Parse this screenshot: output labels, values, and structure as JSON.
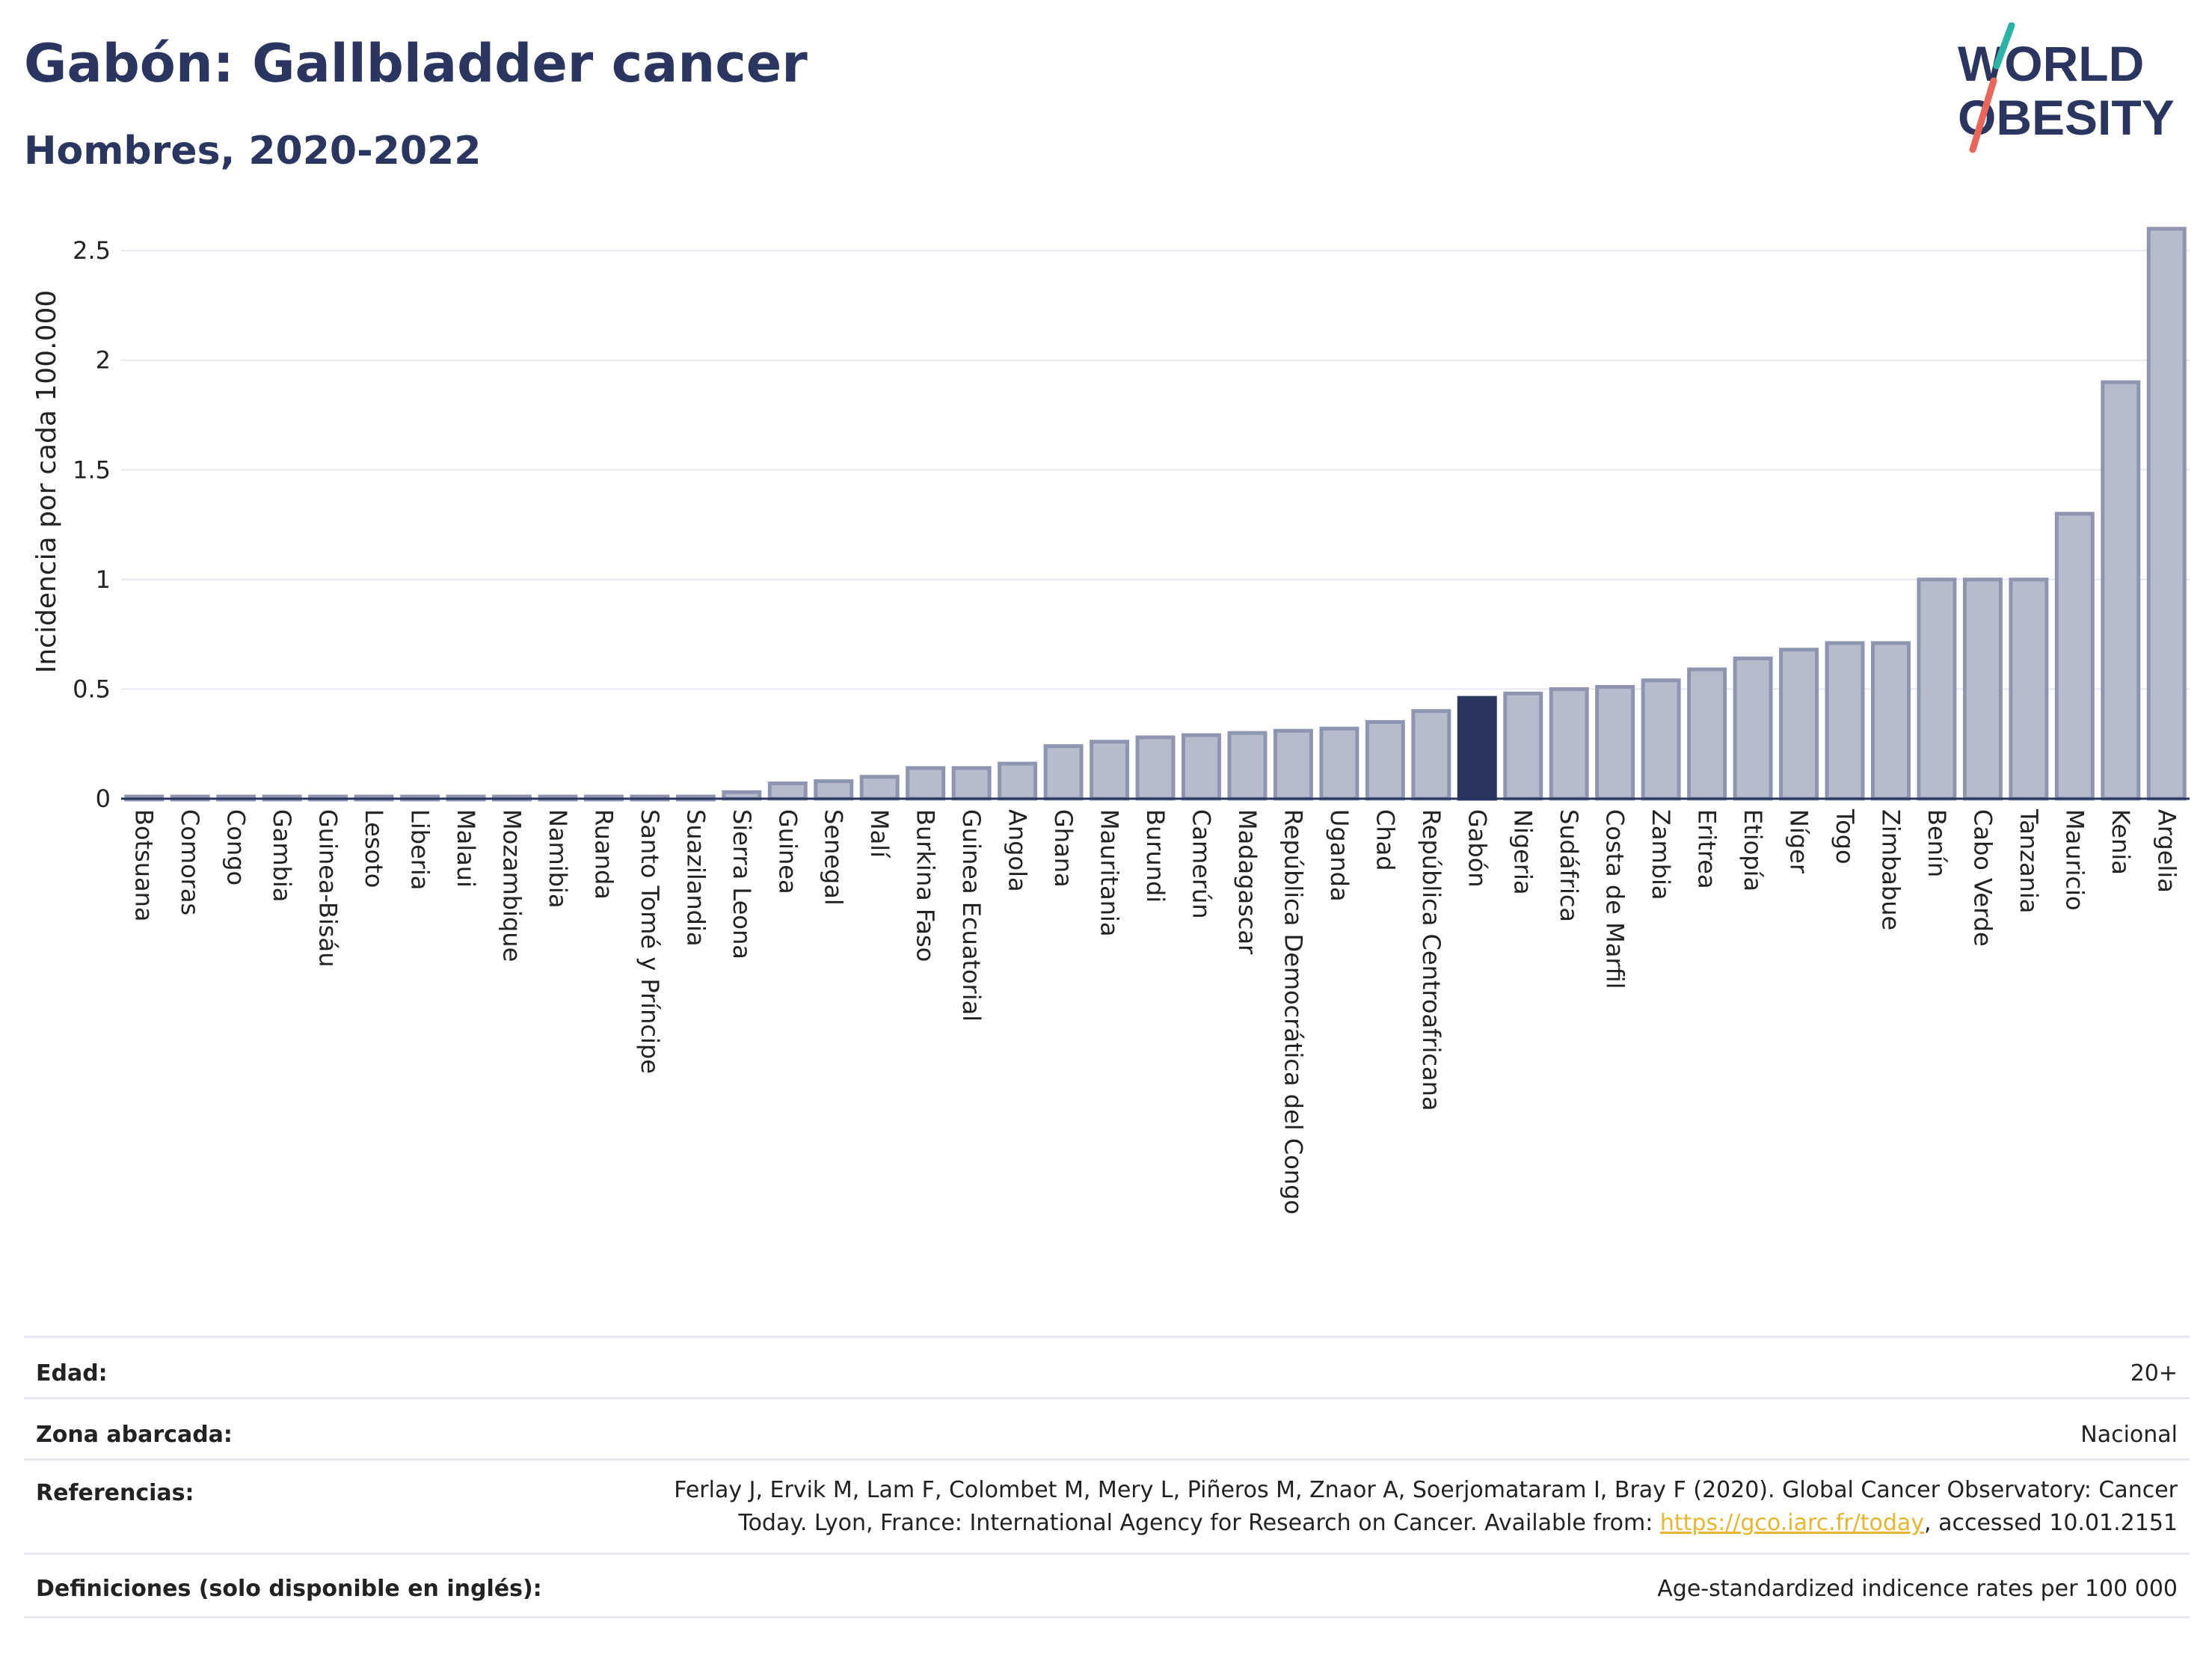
{
  "header": {
    "title": "Gabón: Gallbladder cancer",
    "subtitle": "Hombres, 2020-2022"
  },
  "logo": {
    "line1": "WORLD",
    "line2": "OBESITY",
    "accent_teal": "#2bb3a8",
    "accent_coral": "#e8665a"
  },
  "colors": {
    "bar_default": "#b7bccd",
    "bar_default_stroke": "#8e95b0",
    "bar_highlight": "#2a3560",
    "text_dark": "#2a3560"
  },
  "chart_data": {
    "type": "bar",
    "title": "Gabón: Gallbladder cancer",
    "subtitle": "Hombres, 2020-2022",
    "ylabel": "Incidencia por cada 100.000",
    "xlabel": "",
    "ylim": [
      0,
      2.62
    ],
    "yticks": [
      0,
      0.5,
      1,
      1.5,
      2,
      2.5
    ],
    "ytick_labels": [
      "0",
      "0.5",
      "1",
      "1.5",
      "2",
      "2.5"
    ],
    "grid": true,
    "highlight": "Gabón",
    "categories": [
      "Botsuana",
      "Comoras",
      "Congo",
      "Gambia",
      "Guinea-Bisáu",
      "Lesoto",
      "Liberia",
      "Malaui",
      "Mozambique",
      "Namibia",
      "Ruanda",
      "Santo Tomé y Príncipe",
      "Suazilandia",
      "Sierra Leona",
      "Guinea",
      "Senegal",
      "Malí",
      "Burkina Faso",
      "Guinea Ecuatorial",
      "Angola",
      "Ghana",
      "Mauritania",
      "Burundi",
      "Camerún",
      "Madagascar",
      "República Democrática del Congo",
      "Uganda",
      "Chad",
      "República Centroafricana",
      "Gabón",
      "Nigeria",
      "Sudáfrica",
      "Costa de Marfil",
      "Zambia",
      "Eritrea",
      "Etiopía",
      "Níger",
      "Togo",
      "Zimbabue",
      "Benín",
      "Cabo Verde",
      "Tanzania",
      "Mauricio",
      "Kenia",
      "Argelia"
    ],
    "values": [
      0.01,
      0.01,
      0.01,
      0.01,
      0.01,
      0.01,
      0.01,
      0.01,
      0.01,
      0.01,
      0.01,
      0.01,
      0.01,
      0.03,
      0.07,
      0.08,
      0.1,
      0.14,
      0.14,
      0.16,
      0.24,
      0.26,
      0.28,
      0.29,
      0.3,
      0.31,
      0.32,
      0.35,
      0.4,
      0.46,
      0.48,
      0.5,
      0.51,
      0.54,
      0.59,
      0.64,
      0.68,
      0.71,
      0.71,
      1.0,
      1.0,
      1.0,
      1.3,
      1.9,
      2.6
    ]
  },
  "info": {
    "age_label": "Edad:",
    "age_value": "20+",
    "area_label": "Zona abarcada:",
    "area_value": "Nacional",
    "refs_label": "Referencias:",
    "refs_text_1": "Ferlay J, Ervik M, Lam F, Colombet M, Mery L, Piñeros M, Znaor A, Soerjomataram I, Bray F (2020). Global Cancer Observatory: Cancer",
    "refs_text_2": "Today. Lyon, France: International Agency for Research on Cancer. Available from: ",
    "refs_link": "https://gco.iarc.fr/today",
    "refs_text_3": ", accessed 10.01.2151",
    "defs_label": "Definiciones (solo disponible en inglés):",
    "defs_value": "Age-standardized indicence rates per 100 000"
  }
}
